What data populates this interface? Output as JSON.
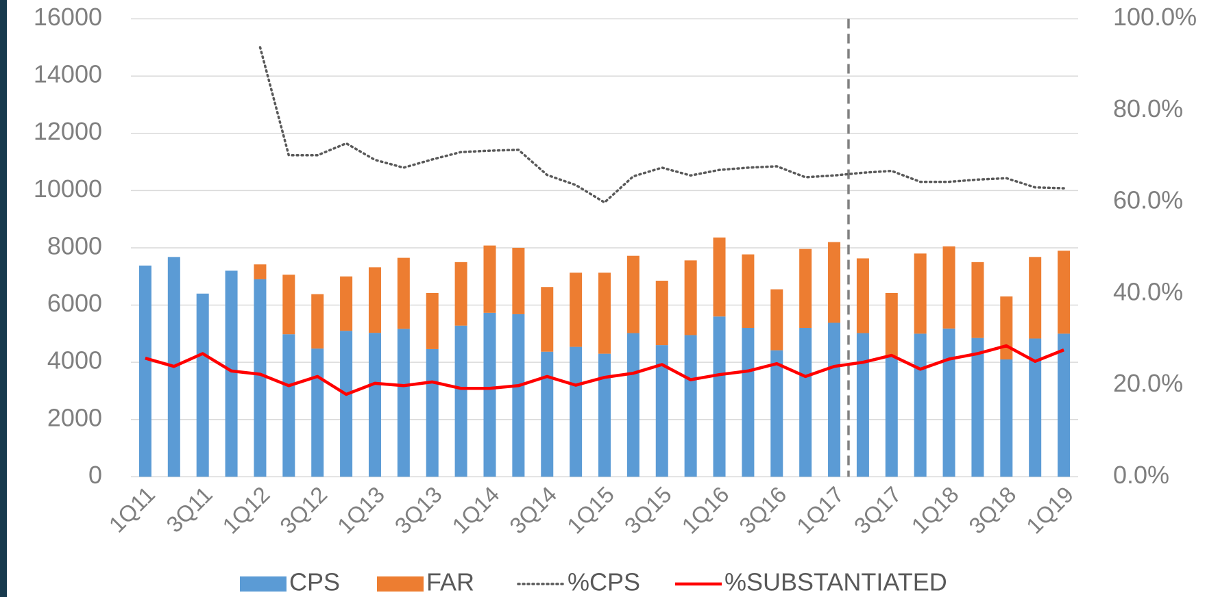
{
  "chart_data": {
    "type": "bar",
    "stacked": true,
    "categories": [
      "1Q11",
      null,
      "3Q11",
      null,
      "1Q12",
      null,
      "3Q12",
      null,
      "1Q13",
      null,
      "3Q13",
      null,
      "1Q14",
      null,
      "3Q14",
      null,
      "1Q15",
      null,
      "3Q15",
      null,
      "1Q16",
      null,
      "3Q16",
      null,
      "1Q17",
      null,
      "3Q17",
      null,
      "1Q18",
      null,
      "3Q18",
      null,
      "1Q19"
    ],
    "series": [
      {
        "name": "CPS",
        "type": "bar",
        "color": "#5b9bd5",
        "values": [
          7380,
          7680,
          6400,
          7200,
          6900,
          4980,
          4480,
          5100,
          5030,
          5170,
          4460,
          5280,
          5730,
          5680,
          4370,
          4540,
          4300,
          5020,
          4600,
          4950,
          5600,
          5200,
          4420,
          5200,
          5380,
          5020,
          4200,
          5000,
          5180,
          4850,
          4100,
          4830,
          5000
        ]
      },
      {
        "name": "FAR",
        "type": "bar",
        "color": "#ed7d31",
        "values": [
          0,
          0,
          0,
          0,
          520,
          2080,
          1900,
          1900,
          2290,
          2480,
          1960,
          2220,
          2350,
          2320,
          2260,
          2590,
          2830,
          2700,
          2250,
          2610,
          2760,
          2570,
          2130,
          2760,
          2820,
          2610,
          2220,
          2800,
          2870,
          2650,
          2200,
          2850,
          2900
        ]
      },
      {
        "name": "%CPS",
        "type": "line",
        "style": "dotted",
        "axis": "y2",
        "color": "#595959",
        "values": [
          null,
          null,
          null,
          null,
          93.8,
          70.2,
          70.2,
          72.8,
          69.2,
          67.5,
          69.3,
          70.9,
          71.2,
          71.4,
          65.9,
          63.7,
          59.9,
          65.6,
          67.5,
          65.8,
          67.0,
          67.5,
          67.8,
          65.4,
          65.8,
          66.4,
          66.8,
          64.4,
          64.4,
          64.9,
          65.2,
          63.2,
          63.0
        ]
      },
      {
        "name": "%SUBSTANTIATED",
        "type": "line",
        "style": "solid",
        "axis": "y2",
        "color": "#ff0000",
        "values": [
          25.9,
          24.1,
          26.9,
          23.1,
          22.4,
          19.9,
          21.9,
          18.0,
          20.4,
          19.9,
          20.7,
          19.3,
          19.3,
          19.9,
          21.9,
          20.0,
          21.7,
          22.6,
          24.5,
          21.2,
          22.3,
          23.1,
          24.7,
          21.9,
          24.1,
          25.0,
          26.5,
          23.5,
          25.7,
          26.9,
          28.6,
          25.2,
          27.7
        ]
      }
    ],
    "ylim": [
      0,
      16000
    ],
    "yticks": [
      0,
      2000,
      4000,
      6000,
      8000,
      10000,
      12000,
      14000,
      16000
    ],
    "y2lim": [
      0,
      100
    ],
    "y2ticks": [
      {
        "value": 0,
        "label": "0.0%"
      },
      {
        "value": 20,
        "label": "20.0%"
      },
      {
        "value": 40,
        "label": "40.0%"
      },
      {
        "value": 60,
        "label": "60.0%"
      },
      {
        "value": 80,
        "label": "80.0%"
      },
      {
        "value": 100,
        "label": "100.0%"
      }
    ],
    "grid": true,
    "legend": "bottom"
  }
}
